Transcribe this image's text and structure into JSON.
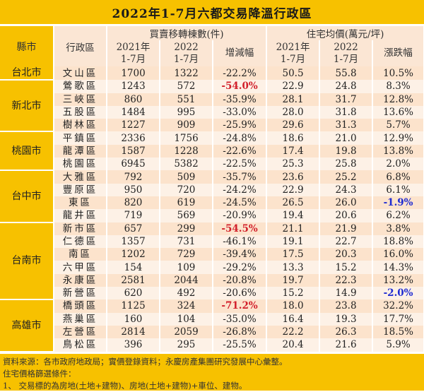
{
  "title": "2022年1-7月六都交易降溫行政區",
  "header": {
    "city": "縣市",
    "district": "行政區",
    "group_transfers": "買賣移轉棟數(件)",
    "group_price": "住宅均價(萬元/坪)",
    "y2021_line1": "2021年",
    "y2021_line2": "1-7月",
    "y2022_line1": "2022",
    "y2022_line2": "1-7月",
    "change_transfers": "增減幅",
    "change_price": "漲跌幅"
  },
  "rows": [
    {
      "city": "台北市",
      "district": "文山區",
      "t2021": "1700",
      "t2022": "1322",
      "tchg": "-22.2%",
      "p2021": "50.5",
      "p2022": "55.8",
      "pchg": "10.5%"
    },
    {
      "city": "新北市",
      "district": "鶯歌區",
      "t2021": "1243",
      "t2022": "572",
      "tchg": "-54.0%",
      "p2021": "22.9",
      "p2022": "24.8",
      "pchg": "8.3%"
    },
    {
      "city": "新北市",
      "district": "三峽區",
      "t2021": "860",
      "t2022": "551",
      "tchg": "-35.9%",
      "p2021": "28.1",
      "p2022": "31.7",
      "pchg": "12.8%"
    },
    {
      "city": "新北市",
      "district": "五股區",
      "t2021": "1484",
      "t2022": "995",
      "tchg": "-33.0%",
      "p2021": "28.0",
      "p2022": "31.8",
      "pchg": "13.6%"
    },
    {
      "city": "新北市",
      "district": "樹林區",
      "t2021": "1227",
      "t2022": "909",
      "tchg": "-25.9%",
      "p2021": "29.6",
      "p2022": "31.3",
      "pchg": "5.7%"
    },
    {
      "city": "桃園市",
      "district": "平鎮區",
      "t2021": "2336",
      "t2022": "1756",
      "tchg": "-24.8%",
      "p2021": "18.6",
      "p2022": "21.0",
      "pchg": "12.9%"
    },
    {
      "city": "桃園市",
      "district": "龍潭區",
      "t2021": "1587",
      "t2022": "1228",
      "tchg": "-22.6%",
      "p2021": "17.4",
      "p2022": "19.8",
      "pchg": "13.8%"
    },
    {
      "city": "桃園市",
      "district": "桃園區",
      "t2021": "6945",
      "t2022": "5382",
      "tchg": "-22.5%",
      "p2021": "25.3",
      "p2022": "25.8",
      "pchg": "2.0%"
    },
    {
      "city": "台中市",
      "district": "大雅區",
      "t2021": "792",
      "t2022": "509",
      "tchg": "-35.7%",
      "p2021": "23.6",
      "p2022": "25.2",
      "pchg": "6.8%"
    },
    {
      "city": "台中市",
      "district": "豐原區",
      "t2021": "950",
      "t2022": "720",
      "tchg": "-24.2%",
      "p2021": "22.9",
      "p2022": "24.3",
      "pchg": "6.1%"
    },
    {
      "city": "台中市",
      "district": "東區",
      "t2021": "820",
      "t2022": "619",
      "tchg": "-24.5%",
      "p2021": "26.5",
      "p2022": "26.0",
      "pchg": "-1.9%"
    },
    {
      "city": "台中市",
      "district": "龍井區",
      "t2021": "719",
      "t2022": "569",
      "tchg": "-20.9%",
      "p2021": "19.4",
      "p2022": "20.6",
      "pchg": "6.2%"
    },
    {
      "city": "台南市",
      "district": "新市區",
      "t2021": "657",
      "t2022": "299",
      "tchg": "-54.5%",
      "p2021": "21.1",
      "p2022": "21.9",
      "pchg": "3.8%"
    },
    {
      "city": "台南市",
      "district": "仁德區",
      "t2021": "1357",
      "t2022": "731",
      "tchg": "-46.1%",
      "p2021": "19.1",
      "p2022": "22.7",
      "pchg": "18.8%"
    },
    {
      "city": "台南市",
      "district": "南區",
      "t2021": "1202",
      "t2022": "729",
      "tchg": "-39.4%",
      "p2021": "17.5",
      "p2022": "20.3",
      "pchg": "16.0%"
    },
    {
      "city": "台南市",
      "district": "六甲區",
      "t2021": "154",
      "t2022": "109",
      "tchg": "-29.2%",
      "p2021": "13.3",
      "p2022": "15.2",
      "pchg": "14.3%"
    },
    {
      "city": "台南市",
      "district": "永康區",
      "t2021": "2581",
      "t2022": "2044",
      "tchg": "-20.8%",
      "p2021": "19.7",
      "p2022": "22.3",
      "pchg": "13.2%"
    },
    {
      "city": "台南市",
      "district": "新營區",
      "t2021": "620",
      "t2022": "492",
      "tchg": "-20.6%",
      "p2021": "15.2",
      "p2022": "14.9",
      "pchg": "-2.0%"
    },
    {
      "city": "高雄市",
      "district": "橋頭區",
      "t2021": "1125",
      "t2022": "324",
      "tchg": "-71.2%",
      "p2021": "18.0",
      "p2022": "23.8",
      "pchg": "32.2%"
    },
    {
      "city": "高雄市",
      "district": "燕巢區",
      "t2021": "160",
      "t2022": "104",
      "tchg": "-35.0%",
      "p2021": "16.4",
      "p2022": "19.3",
      "pchg": "17.7%"
    },
    {
      "city": "高雄市",
      "district": "左營區",
      "t2021": "2814",
      "t2022": "2059",
      "tchg": "-26.8%",
      "p2021": "22.2",
      "p2022": "26.3",
      "pchg": "18.5%"
    },
    {
      "city": "高雄市",
      "district": "鳥松區",
      "t2021": "396",
      "t2022": "295",
      "tchg": "-25.5%",
      "p2021": "20.4",
      "p2022": "21.6",
      "pchg": "5.9%"
    }
  ],
  "city_groups": [
    {
      "name": "台北市",
      "span": 1
    },
    {
      "name": "新北市",
      "span": 4
    },
    {
      "name": "桃園市",
      "span": 3
    },
    {
      "name": "台中市",
      "span": 4
    },
    {
      "name": "台南市",
      "span": 6
    },
    {
      "name": "高雄市",
      "span": 4
    }
  ],
  "highlights": {
    "red_transfer_change": [
      "-54.0%",
      "-54.5%",
      "-71.2%"
    ],
    "blue_price_change": [
      "-1.9%",
      "-2.0%"
    ],
    "red_color": "#d21f2a",
    "blue_color": "#1f2bd2",
    "accent_yellow": "#f7c100"
  },
  "footer": {
    "source": "資料來源：各市政府地政局；實價登錄資料；永慶房產集團研究發展中心彙整。",
    "criteria_title": "住宅價格篩選條件：",
    "criteria_1": "1、 交易標的為房地(土地+建物)、房地(土地+建物)+車位、建物。"
  }
}
